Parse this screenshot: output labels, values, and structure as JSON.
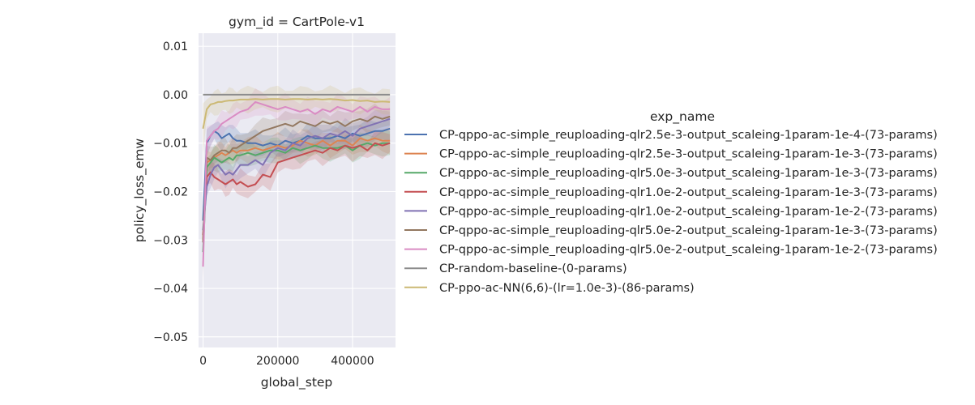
{
  "chart_data": {
    "type": "line",
    "title": "gym_id = CartPole-v1",
    "xlabel": "global_step",
    "ylabel": "policy_loss_emw",
    "xlim": [
      -12000,
      515000
    ],
    "ylim": [
      -0.0522,
      0.0127
    ],
    "x_ticks": [
      0,
      200000,
      400000
    ],
    "x_tick_labels": [
      "0",
      "200000",
      "400000"
    ],
    "y_ticks": [
      -0.05,
      -0.04,
      -0.03,
      -0.02,
      -0.01,
      0.0,
      0.01
    ],
    "y_tick_labels": [
      "−0.05",
      "−0.04",
      "−0.03",
      "−0.02",
      "−0.01",
      "0.00",
      "0.01"
    ],
    "grid": true,
    "legend": {
      "title": "exp_name",
      "placement": "right"
    },
    "x": [
      0,
      10000,
      20000,
      30000,
      40000,
      50000,
      60000,
      70000,
      80000,
      90000,
      100000,
      120000,
      140000,
      160000,
      180000,
      200000,
      220000,
      240000,
      260000,
      280000,
      300000,
      320000,
      340000,
      360000,
      380000,
      400000,
      420000,
      440000,
      460000,
      480000,
      500000
    ],
    "series": [
      {
        "name": "CP-qppo-ac-simple_reuploading-qlr2.5e-3-output_scaleing-1param-1e-4-(73-params)",
        "color": "#4c72b0",
        "values": [
          -0.026,
          -0.01,
          -0.0085,
          -0.0075,
          -0.008,
          -0.009,
          -0.0085,
          -0.008,
          -0.009,
          -0.0095,
          -0.0095,
          -0.01,
          -0.01,
          -0.0105,
          -0.01,
          -0.0105,
          -0.0095,
          -0.01,
          -0.0095,
          -0.0085,
          -0.009,
          -0.009,
          -0.009,
          -0.0085,
          -0.009,
          -0.008,
          -0.0085,
          -0.008,
          -0.0075,
          -0.0075,
          -0.007
        ]
      },
      {
        "name": "CP-qppo-ac-simple_reuploading-qlr2.5e-3-output_scaleing-1param-1e-3-(73-params)",
        "color": "#dd8452",
        "values": [
          -0.03,
          -0.014,
          -0.0135,
          -0.013,
          -0.0125,
          -0.012,
          -0.0125,
          -0.012,
          -0.0115,
          -0.012,
          -0.0115,
          -0.0115,
          -0.011,
          -0.0115,
          -0.011,
          -0.0105,
          -0.011,
          -0.0105,
          -0.0095,
          -0.01,
          -0.0105,
          -0.0095,
          -0.0105,
          -0.0095,
          -0.0095,
          -0.0105,
          -0.009,
          -0.0095,
          -0.009,
          -0.0095,
          -0.0095
        ]
      },
      {
        "name": "CP-qppo-ac-simple_reuploading-qlr5.0e-3-output_scaleing-1param-1e-3-(73-params)",
        "color": "#55a868",
        "values": [
          -0.0325,
          -0.015,
          -0.014,
          -0.013,
          -0.0135,
          -0.014,
          -0.0135,
          -0.013,
          -0.0135,
          -0.0125,
          -0.0125,
          -0.012,
          -0.0125,
          -0.012,
          -0.0115,
          -0.0115,
          -0.012,
          -0.011,
          -0.0115,
          -0.011,
          -0.0105,
          -0.011,
          -0.011,
          -0.011,
          -0.0105,
          -0.0115,
          -0.0105,
          -0.01,
          -0.0105,
          -0.01,
          -0.01
        ]
      },
      {
        "name": "CP-qppo-ac-simple_reuploading-qlr1.0e-2-output_scaleing-1param-1e-3-(73-params)",
        "color": "#c44e52",
        "values": [
          -0.029,
          -0.017,
          -0.016,
          -0.017,
          -0.0175,
          -0.018,
          -0.0185,
          -0.018,
          -0.0175,
          -0.0185,
          -0.018,
          -0.019,
          -0.0185,
          -0.0165,
          -0.017,
          -0.014,
          -0.0135,
          -0.013,
          -0.0125,
          -0.012,
          -0.0115,
          -0.012,
          -0.011,
          -0.0115,
          -0.0105,
          -0.011,
          -0.0105,
          -0.0115,
          -0.01,
          -0.0105,
          -0.01
        ]
      },
      {
        "name": "CP-qppo-ac-simple_reuploading-qlr1.0e-2-output_scaleing-1param-1e-2-(73-params)",
        "color": "#8172b3",
        "values": [
          -0.028,
          -0.019,
          -0.0165,
          -0.015,
          -0.0145,
          -0.0155,
          -0.0165,
          -0.016,
          -0.0165,
          -0.0155,
          -0.0145,
          -0.0145,
          -0.0135,
          -0.0145,
          -0.012,
          -0.011,
          -0.0115,
          -0.01,
          -0.0105,
          -0.009,
          -0.0085,
          -0.009,
          -0.008,
          -0.0085,
          -0.0075,
          -0.0085,
          -0.007,
          -0.0065,
          -0.006,
          -0.0055,
          -0.005
        ]
      },
      {
        "name": "CP-qppo-ac-simple_reuploading-qlr5.0e-2-output_scaleing-1param-1e-3-(73-params)",
        "color": "#937860",
        "values": [
          -0.0305,
          -0.013,
          -0.0135,
          -0.0125,
          -0.012,
          -0.0115,
          -0.0115,
          -0.012,
          -0.011,
          -0.011,
          -0.0105,
          -0.0095,
          -0.0085,
          -0.0075,
          -0.007,
          -0.0065,
          -0.006,
          -0.0065,
          -0.0055,
          -0.006,
          -0.0065,
          -0.0055,
          -0.006,
          -0.0055,
          -0.0065,
          -0.0055,
          -0.005,
          -0.0055,
          -0.0045,
          -0.005,
          -0.0045
        ]
      },
      {
        "name": "CP-qppo-ac-simple_reuploading-qlr5.0e-2-output_scaleing-1param-1e-2-(73-params)",
        "color": "#da8bc3",
        "values": [
          -0.0355,
          -0.0095,
          -0.0085,
          -0.0075,
          -0.007,
          -0.006,
          -0.0055,
          -0.005,
          -0.0045,
          -0.004,
          -0.0035,
          -0.003,
          -0.0015,
          -0.002,
          -0.0025,
          -0.003,
          -0.0025,
          -0.003,
          -0.0035,
          -0.003,
          -0.004,
          -0.003,
          -0.0035,
          -0.0025,
          -0.003,
          -0.0035,
          -0.0025,
          -0.0035,
          -0.0025,
          -0.003,
          -0.003
        ]
      },
      {
        "name": "CP-random-baseline-(0-params)",
        "color": "#8c8c8c",
        "values": [
          0.0,
          0.0,
          0.0,
          0.0,
          0.0,
          0.0,
          0.0,
          0.0,
          0.0,
          0.0,
          0.0,
          0.0,
          0.0,
          0.0,
          0.0,
          0.0,
          0.0,
          0.0,
          0.0,
          0.0,
          0.0,
          0.0,
          0.0,
          0.0,
          0.0,
          0.0,
          0.0,
          0.0,
          0.0,
          0.0,
          0.0
        ]
      },
      {
        "name": "CP-ppo-ac-NN(6,6)-(lr=1.0e-3)-(86-params)",
        "color": "#ccb974",
        "values": [
          -0.007,
          -0.003,
          -0.002,
          -0.0018,
          -0.0015,
          -0.0015,
          -0.0013,
          -0.0012,
          -0.0012,
          -0.0011,
          -0.001,
          -0.001,
          -0.0009,
          -0.001,
          -0.0009,
          -0.0009,
          -0.001,
          -0.0009,
          -0.0009,
          -0.001,
          -0.0009,
          -0.001,
          -0.0009,
          -0.001,
          -0.0012,
          -0.0011,
          -0.0013,
          -0.0012,
          -0.0015,
          -0.0014,
          -0.0015
        ]
      }
    ]
  }
}
